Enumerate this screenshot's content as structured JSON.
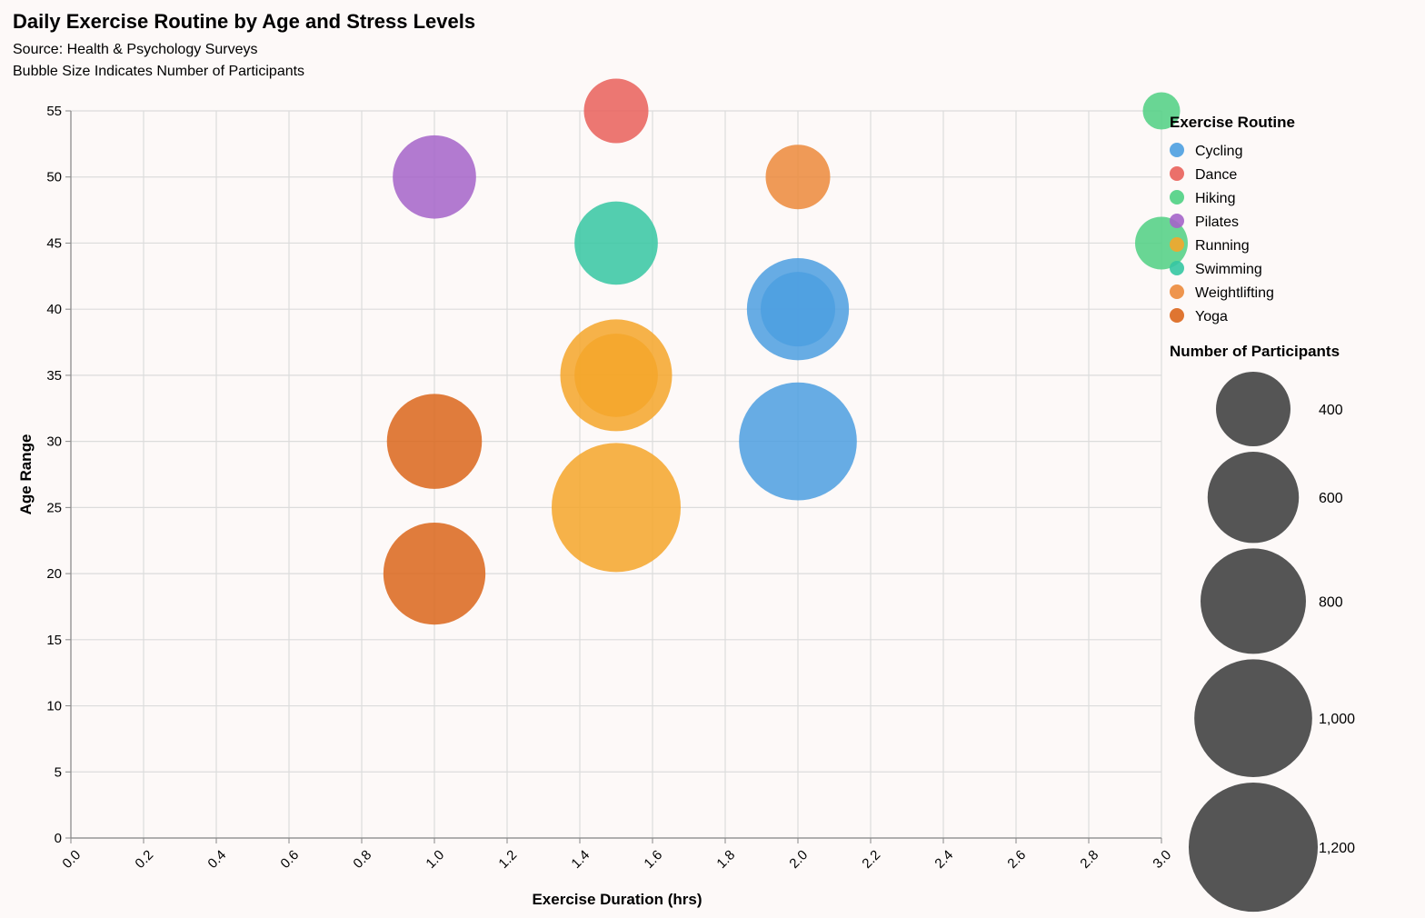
{
  "chart_data": {
    "type": "scatter",
    "title": "Daily Exercise Routine by Age and Stress Levels",
    "subtitle": [
      "Source: Health & Psychology Surveys",
      "Bubble Size Indicates Number of Participants"
    ],
    "xlabel": "Exercise Duration (hrs)",
    "ylabel": "Age Range",
    "xlim": [
      0,
      3
    ],
    "ylim": [
      0,
      55
    ],
    "x_ticks": [
      "0.0",
      "0.2",
      "0.4",
      "0.6",
      "0.8",
      "1.0",
      "1.2",
      "1.4",
      "1.6",
      "1.8",
      "2.0",
      "2.2",
      "2.4",
      "2.6",
      "2.8",
      "3.0"
    ],
    "y_ticks": [
      "0",
      "5",
      "10",
      "15",
      "20",
      "25",
      "30",
      "35",
      "40",
      "45",
      "50",
      "55"
    ],
    "grid": true,
    "legend_position": "right",
    "color_legend_title": "Exercise Routine",
    "size_legend_title": "Number of Participants",
    "size_legend": [
      {
        "value": 400,
        "label": "400"
      },
      {
        "value": 600,
        "label": "600"
      },
      {
        "value": 800,
        "label": "800"
      },
      {
        "value": 1000,
        "label": "1,000"
      },
      {
        "value": 1200,
        "label": "1,200"
      }
    ],
    "routines": [
      {
        "name": "Cycling",
        "color": "#4c9fe0"
      },
      {
        "name": "Dance",
        "color": "#e9605a"
      },
      {
        "name": "Hiking",
        "color": "#4fd083"
      },
      {
        "name": "Pilates",
        "color": "#a564c9"
      },
      {
        "name": "Running",
        "color": "#f4a62a"
      },
      {
        "name": "Swimming",
        "color": "#35c7a2"
      },
      {
        "name": "Weightlifting",
        "color": "#ec8a3b"
      },
      {
        "name": "Yoga",
        "color": "#db661b"
      }
    ],
    "points": [
      {
        "routine": "Running",
        "x": 1.5,
        "y": 25,
        "participants": 1200
      },
      {
        "routine": "Cycling",
        "x": 2.0,
        "y": 30,
        "participants": 1000
      },
      {
        "routine": "Running",
        "x": 1.5,
        "y": 35,
        "participants": 900
      },
      {
        "routine": "Yoga",
        "x": 1.0,
        "y": 20,
        "participants": 750
      },
      {
        "routine": "Cycling",
        "x": 2.0,
        "y": 40,
        "participants": 750
      },
      {
        "routine": "Yoga",
        "x": 1.0,
        "y": 30,
        "participants": 650
      },
      {
        "routine": "Running",
        "x": 1.5,
        "y": 35,
        "participants": 500
      },
      {
        "routine": "Swimming",
        "x": 1.5,
        "y": 45,
        "participants": 500
      },
      {
        "routine": "Pilates",
        "x": 1.0,
        "y": 50,
        "participants": 500
      },
      {
        "routine": "Cycling",
        "x": 2.0,
        "y": 40,
        "participants": 400
      },
      {
        "routine": "Weightlifting",
        "x": 2.0,
        "y": 50,
        "participants": 300
      },
      {
        "routine": "Dance",
        "x": 1.5,
        "y": 55,
        "participants": 300
      },
      {
        "routine": "Hiking",
        "x": 3.0,
        "y": 45,
        "participants": 200
      },
      {
        "routine": "Hiking",
        "x": 3.0,
        "y": 55,
        "participants": 100
      }
    ]
  }
}
